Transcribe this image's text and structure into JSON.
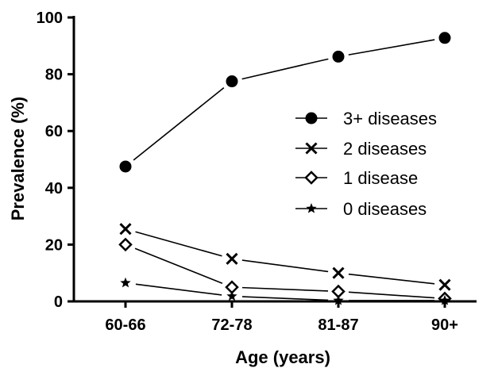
{
  "chart_data": {
    "type": "line",
    "title": "",
    "xlabel": "Age (years)",
    "ylabel": "Prevalence (%)",
    "categories": [
      "60-66",
      "72-78",
      "81-87",
      "90+"
    ],
    "ylim": [
      0,
      100
    ],
    "yticks": [
      0,
      20,
      40,
      60,
      80,
      100
    ],
    "grid": false,
    "legend_position": "right",
    "series": [
      {
        "name": "3+ diseases",
        "marker": "circle",
        "values": [
          47.5,
          77.5,
          86.2,
          92.8
        ]
      },
      {
        "name": "2 diseases",
        "marker": "x",
        "values": [
          25.5,
          15.0,
          10.0,
          5.8
        ]
      },
      {
        "name": "1 disease",
        "marker": "diamond",
        "values": [
          20.0,
          5.0,
          3.5,
          1.0
        ]
      },
      {
        "name": "0 diseases",
        "marker": "star",
        "values": [
          6.5,
          1.8,
          0.3,
          0.3
        ]
      }
    ]
  }
}
